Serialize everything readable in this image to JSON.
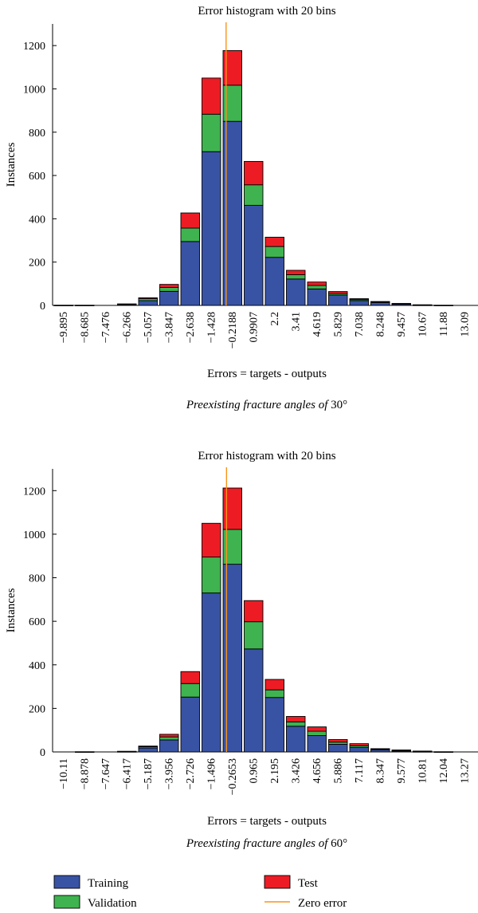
{
  "colors": {
    "training": "#3953a4",
    "validation": "#3fb34f",
    "test": "#ed1c24",
    "zero": "#f7941d",
    "edge": "#000000"
  },
  "captions": [
    {
      "italic": "Preexisting fracture angles of ",
      "value": "30°"
    },
    {
      "italic": "Preexisting fracture angles of ",
      "value": "60°"
    }
  ],
  "legend": [
    {
      "label": "Training",
      "kind": "box",
      "color": "#3953a4"
    },
    {
      "label": "Test",
      "kind": "box",
      "color": "#ed1c24"
    },
    {
      "label": "Validation",
      "kind": "box",
      "color": "#3fb34f"
    },
    {
      "label": "Zero error",
      "kind": "line",
      "color": "#f7941d"
    }
  ],
  "chart_data": [
    {
      "type": "bar",
      "stacked": true,
      "title": "Error histogram with 20 bins",
      "xlabel": "Errors = targets - outputs",
      "ylabel": "Instances",
      "ylim": [
        0,
        1300
      ],
      "yticks": [
        0,
        200,
        400,
        600,
        800,
        1000,
        1200
      ],
      "categories": [
        "−9.895",
        "−8.685",
        "−7.476",
        "−6.266",
        "−5.057",
        "−3.847",
        "−2.638",
        "−1.428",
        "−0.2188",
        "0.9907",
        "2.2",
        "3.41",
        "4.619",
        "5.829",
        "7.038",
        "8.248",
        "9.457",
        "10.67",
        "11.88",
        "13.09"
      ],
      "series": [
        {
          "name": "Training",
          "values": [
            1,
            1,
            0,
            4,
            22,
            65,
            295,
            710,
            850,
            462,
            222,
            122,
            76,
            48,
            22,
            14,
            6,
            2,
            1,
            0
          ]
        },
        {
          "name": "Validation",
          "values": [
            0,
            0,
            0,
            1,
            9,
            18,
            62,
            173,
            167,
            95,
            50,
            20,
            16,
            7,
            5,
            2,
            2,
            1,
            0,
            0
          ]
        },
        {
          "name": "Test",
          "values": [
            0,
            0,
            0,
            2,
            4,
            14,
            70,
            167,
            160,
            108,
            43,
            20,
            16,
            9,
            4,
            2,
            1,
            0,
            0,
            0
          ]
        }
      ],
      "zero_error_x_position": 7.7
    },
    {
      "type": "bar",
      "stacked": true,
      "title": "Error histogram with 20 bins",
      "xlabel": "Errors = targets - outputs",
      "ylabel": "Instances",
      "ylim": [
        0,
        1300
      ],
      "yticks": [
        0,
        200,
        400,
        600,
        800,
        1000,
        1200
      ],
      "categories": [
        "−10.11",
        "−8.878",
        "−7.647",
        "−6.417",
        "−5.187",
        "−3.956",
        "−2.726",
        "−1.496",
        "−0.2653",
        "0.965",
        "2.195",
        "3.426",
        "4.656",
        "5.886",
        "7.117",
        "8.347",
        "9.577",
        "10.81",
        "12.04",
        "13.27"
      ],
      "series": [
        {
          "name": "Training",
          "values": [
            0,
            1,
            0,
            2,
            18,
            55,
            252,
            730,
            862,
            473,
            250,
            118,
            75,
            35,
            20,
            10,
            5,
            2,
            1,
            0
          ]
        },
        {
          "name": "Validation",
          "values": [
            0,
            0,
            0,
            0,
            6,
            14,
            62,
            165,
            160,
            125,
            35,
            20,
            20,
            10,
            8,
            3,
            2,
            1,
            0,
            0
          ]
        },
        {
          "name": "Test",
          "values": [
            0,
            0,
            0,
            1,
            3,
            12,
            55,
            155,
            190,
            97,
            48,
            25,
            20,
            12,
            10,
            2,
            2,
            1,
            0,
            0
          ]
        }
      ],
      "zero_error_x_position": 7.72
    }
  ]
}
